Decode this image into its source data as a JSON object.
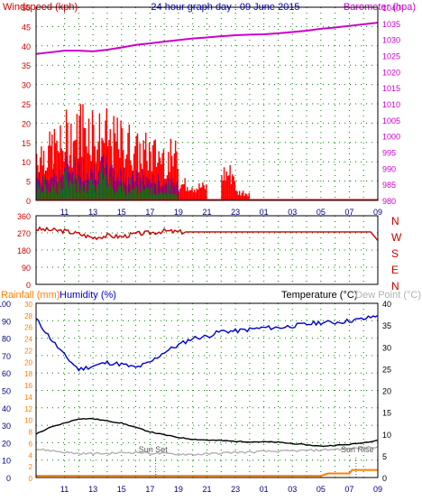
{
  "panel1": {
    "title": "24 hour graph day : 09 June 2015",
    "left_label": "Windspeed (kph)",
    "right_label": "Barometer (hpa)"
  },
  "panel2": {
    "compass_labels": [
      "N",
      "W",
      "S",
      "E",
      "N"
    ]
  },
  "panel3": {
    "label_rainfall": "Rainfall (mm)",
    "label_humidity": "Humidity (%)",
    "label_temperature": "Temperature (°C)",
    "label_dewpoint": "Dew Point (°C)",
    "sunset_label": "Sun Set",
    "sunrise_label": "Sun Rise"
  },
  "colors": {
    "wind": "#ff0000",
    "wind_avg": "#0000ff",
    "wind_min": "#008000",
    "barometer": "#cc00cc",
    "direction": "#cc0000",
    "humidity": "#0000cc",
    "temperature": "#000000",
    "dewpoint": "#b0b0b0",
    "rainfall": "#ff8000",
    "axis_left_top": "#cc0000",
    "axis_bottom": "#000080",
    "grid": "#008000"
  },
  "chart_data": [
    {
      "type": "bar",
      "name": "Windspeed / Barometer",
      "x_ticks": [
        "11",
        "13",
        "15",
        "17",
        "19",
        "21",
        "23",
        "01",
        "03",
        "05",
        "07",
        "09"
      ],
      "y_ticks": [
        "0",
        "5",
        "10",
        "15",
        "20",
        "25",
        "30",
        "35",
        "40",
        "45",
        "50"
      ],
      "ylim": [
        0,
        50
      ],
      "y2_ticks": [
        "980",
        "985",
        "990",
        "995",
        "1000",
        "1005",
        "1010",
        "1015",
        "1020",
        "1025",
        "1030",
        "1035",
        "1040"
      ],
      "y2lim": [
        980,
        1040
      ],
      "hours": [
        9.5,
        10.5,
        11.5,
        12.5,
        13.5,
        14.5,
        15.5,
        16.5,
        17.5,
        18.5,
        19.5,
        20.5,
        21.5,
        22.5,
        23.5,
        24.5
      ],
      "gust_max": [
        18,
        20,
        24,
        28,
        24,
        22,
        21,
        18,
        17,
        16,
        6,
        5,
        0,
        10,
        3,
        0
      ],
      "avg_max": [
        8,
        10,
        12,
        12,
        12,
        10,
        9,
        8,
        7,
        6,
        0,
        0,
        0,
        0,
        0,
        0
      ],
      "barometer_x": [
        9,
        10,
        11,
        12,
        13,
        14,
        15,
        16,
        17,
        18,
        19,
        20,
        21,
        22,
        23,
        24,
        25,
        26,
        27,
        28,
        29,
        30,
        31,
        32,
        33
      ],
      "barometer": [
        1025.5,
        1026,
        1026.5,
        1026.5,
        1026.3,
        1026.8,
        1027.5,
        1028.3,
        1028.8,
        1029.3,
        1029.8,
        1030.3,
        1030.6,
        1031,
        1031.3,
        1031.5,
        1031.6,
        1031.9,
        1032.3,
        1032.7,
        1033.3,
        1033.7,
        1034.2,
        1034.7,
        1035.2
      ]
    },
    {
      "type": "line",
      "name": "Wind Direction",
      "y_ticks": [
        "0",
        "90",
        "180",
        "270",
        "360"
      ],
      "ylim": [
        0,
        360
      ],
      "x": [
        9,
        11,
        12,
        13,
        14,
        15,
        16,
        17,
        18,
        19,
        21,
        23,
        25,
        27,
        29,
        31,
        32.5,
        33
      ],
      "values": [
        290,
        280,
        265,
        245,
        255,
        250,
        265,
        270,
        280,
        275,
        275,
        275,
        275,
        275,
        275,
        275,
        275,
        230
      ]
    },
    {
      "type": "line",
      "name": "Humidity / Temperature",
      "y_ticks": [
        "0",
        "10",
        "20",
        "30",
        "40",
        "50",
        "60",
        "70",
        "80",
        "90",
        "100"
      ],
      "ylim": [
        0,
        100
      ],
      "y_inner_ticks": [
        "0",
        "2",
        "4",
        "6",
        "8",
        "10",
        "12",
        "14",
        "16",
        "18",
        "20",
        "22",
        "24",
        "26",
        "28",
        "30"
      ],
      "y_inner_lim": [
        0,
        30
      ],
      "y2_ticks": [
        "0",
        "5",
        "10",
        "15",
        "20",
        "25",
        "30",
        "35",
        "40"
      ],
      "y2lim": [
        0,
        40
      ],
      "x": [
        9,
        10,
        11,
        12,
        13,
        14,
        15,
        16,
        17,
        18,
        19,
        20,
        21,
        22,
        23,
        24,
        25,
        26,
        27,
        28,
        29,
        30,
        31,
        32,
        33
      ],
      "humidity": [
        91,
        80,
        70,
        62,
        64,
        66,
        65,
        63,
        66,
        72,
        76,
        80,
        81,
        84,
        84,
        85,
        86,
        86,
        87,
        88,
        89,
        89,
        90,
        91,
        93
      ],
      "temperature": [
        10,
        11.5,
        12.5,
        13.5,
        13.5,
        13,
        12.5,
        11.5,
        10.5,
        9.8,
        9.2,
        8.8,
        8.6,
        8.5,
        8.3,
        8.2,
        8.2,
        8.1,
        7.8,
        7.5,
        7.2,
        7.4,
        7.6,
        8,
        8.6
      ],
      "dewpoint": [
        6.5,
        6.2,
        5.8,
        5.5,
        5.5,
        5.5,
        5.7,
        5.8,
        5.6,
        5.5,
        5.4,
        5.3,
        5.4,
        5.6,
        5.8,
        5.8,
        6,
        6,
        6.1,
        6.2,
        6.3,
        6.5,
        6.6,
        6.9,
        7.1
      ],
      "rainfall_x": [
        9,
        29,
        29.5,
        31,
        31.2,
        33
      ],
      "rainfall": [
        0.3,
        0.3,
        0.7,
        0.7,
        1.3,
        1.3
      ]
    }
  ]
}
